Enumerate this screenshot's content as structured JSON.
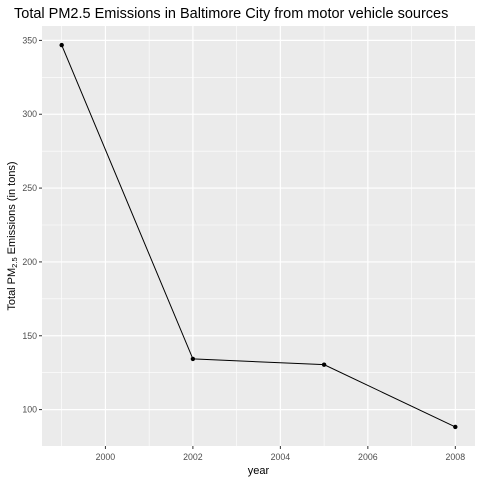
{
  "chart_data": {
    "type": "line",
    "title": "Total PM2.5 Emissions in Baltimore City from motor vehicle sources",
    "xlabel": "year",
    "ylabel": {
      "main": "Total PM",
      "subscript": "2.5",
      "rest": " Emissions (in tons)"
    },
    "x": [
      1999,
      2002,
      2005,
      2008
    ],
    "y": [
      346.82,
      134.31,
      130.43,
      88.28
    ],
    "xlim": [
      1998.55,
      2008.45
    ],
    "ylim": [
      75.35,
      359.75
    ],
    "x_ticks": [
      2000,
      2002,
      2004,
      2006,
      2008
    ],
    "x_tick_labels": [
      "2000",
      "2002",
      "2004",
      "2006",
      "2008"
    ],
    "y_ticks": [
      100,
      150,
      200,
      250,
      300,
      350
    ],
    "y_tick_labels": [
      "100",
      "150",
      "200",
      "250",
      "300",
      "350"
    ],
    "grid": true,
    "colors": {
      "panel": "#ebebeb",
      "grid_major": "#ffffff",
      "line": "#000000",
      "tick_text": "#4d4d4d",
      "axis_title": "#000000"
    }
  }
}
